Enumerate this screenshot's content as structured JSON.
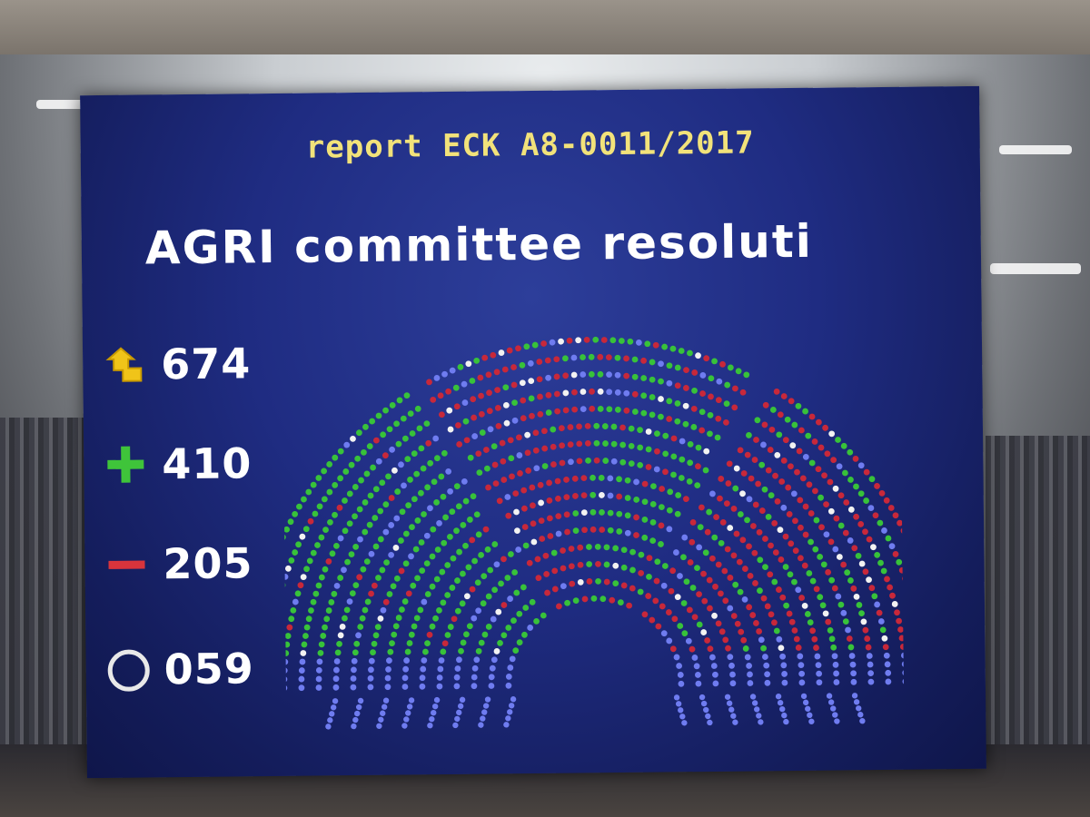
{
  "screen": {
    "report": "report ECK A8-0011/2017",
    "title": "AGRI committee resoluti"
  },
  "tallies": {
    "voters": {
      "value": "674",
      "icon": "voters-icon",
      "color": "#f0c419"
    },
    "for": {
      "value": "410",
      "icon": "plus-icon",
      "color": "#3fc43a"
    },
    "against": {
      "value": "205",
      "icon": "minus-icon",
      "color": "#d8343c"
    },
    "abstain": {
      "value": "059",
      "icon": "abstain-icon",
      "color": "#e8e8e8"
    }
  },
  "seat_colors": {
    "for": "#38c23a",
    "against": "#c8283a",
    "abstain": "#f2f2f2",
    "absent": "#6f7cf0"
  }
}
